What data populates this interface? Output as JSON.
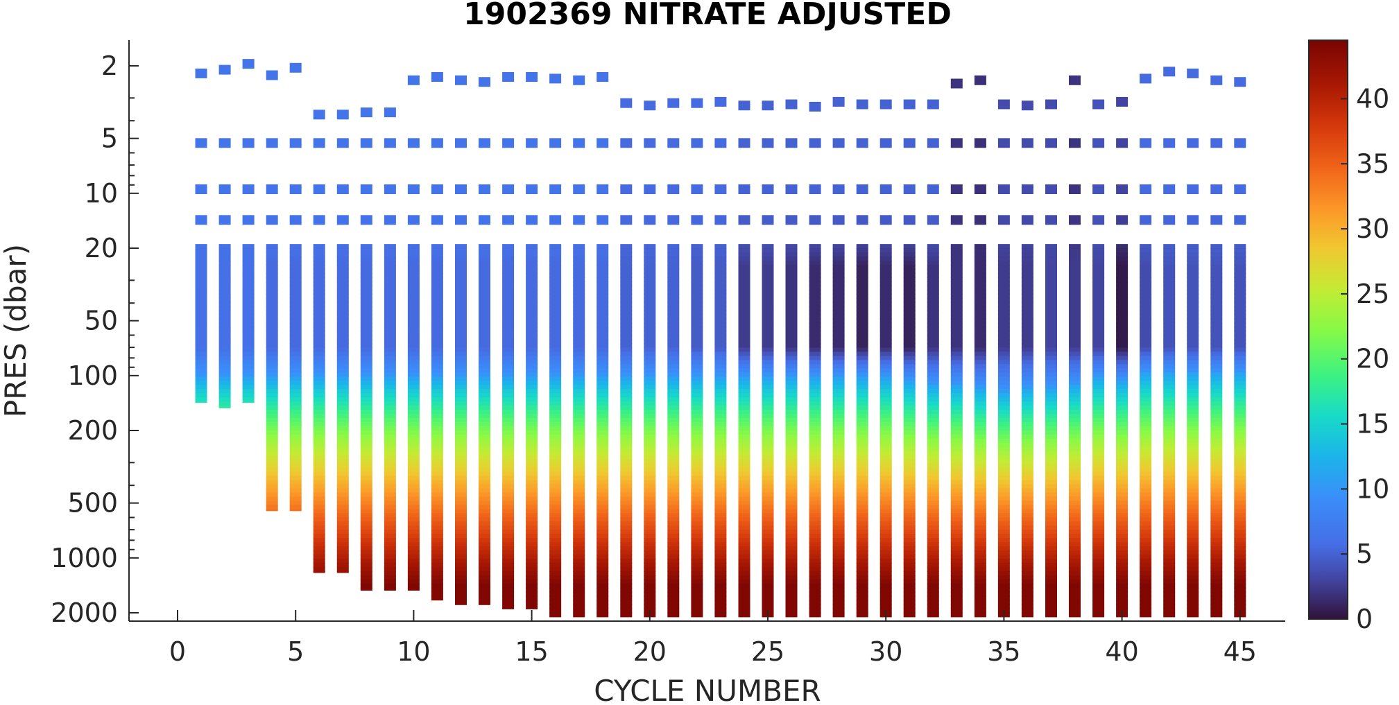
{
  "chart_data": {
    "type": "heatmap",
    "title": "1902369  NITRATE ADJUSTED",
    "xlabel": "CYCLE NUMBER",
    "ylabel": "PRES (dbar)",
    "xlim": [
      -2,
      47
    ],
    "ylim": [
      2000,
      1.5
    ],
    "y_scale": "log",
    "y_direction": "reversed",
    "x_ticks": [
      0,
      5,
      10,
      15,
      20,
      25,
      30,
      35,
      40,
      45
    ],
    "x_tick_labels": [
      "0",
      "5",
      "10",
      "15",
      "20",
      "25",
      "30",
      "35",
      "40",
      "45"
    ],
    "y_ticks": [
      2,
      5,
      10,
      20,
      50,
      100,
      200,
      500,
      1000,
      2000
    ],
    "y_tick_labels": [
      "2",
      "5",
      "10",
      "20",
      "50",
      "100",
      "200",
      "500",
      "1000",
      "2000"
    ],
    "colorbar": {
      "range": [
        0,
        44.5
      ],
      "ticks": [
        0,
        5,
        10,
        15,
        20,
        25,
        30,
        35,
        40
      ],
      "tick_labels": [
        "0",
        "5",
        "10",
        "15",
        "20",
        "25",
        "30",
        "35",
        "40"
      ],
      "colormap": "turbo"
    },
    "grid": false,
    "cycles": [
      1,
      2,
      3,
      4,
      5,
      6,
      7,
      8,
      9,
      10,
      11,
      12,
      13,
      14,
      15,
      16,
      17,
      18,
      19,
      20,
      21,
      22,
      23,
      24,
      25,
      26,
      27,
      28,
      29,
      30,
      31,
      32,
      33,
      34,
      35,
      36,
      37,
      38,
      39,
      40,
      41,
      42,
      43,
      44,
      45
    ],
    "max_pres_dbar": [
      140,
      150,
      140,
      550,
      550,
      1200,
      1200,
      1500,
      1500,
      1500,
      1700,
      1800,
      1800,
      1900,
      1900,
      2100,
      2100,
      2100,
      2100,
      2100,
      2100,
      2100,
      2100,
      2100,
      2100,
      2100,
      2100,
      2100,
      2100,
      2100,
      2100,
      2100,
      2100,
      2100,
      2100,
      2100,
      2100,
      2100,
      2100,
      2100,
      2100,
      2100,
      2100,
      2100,
      2100
    ],
    "surface_pres_dbar": [
      2.2,
      2.1,
      1.95,
      2.25,
      2.05,
      3.7,
      3.7,
      3.6,
      3.6,
      2.4,
      2.3,
      2.4,
      2.45,
      2.3,
      2.3,
      2.35,
      2.4,
      2.3,
      3.2,
      3.3,
      3.2,
      3.2,
      3.15,
      3.3,
      3.3,
      3.25,
      3.35,
      3.15,
      3.25,
      3.25,
      3.25,
      3.25,
      2.5,
      2.4,
      3.25,
      3.3,
      3.25,
      2.4,
      3.25,
      3.15,
      2.35,
      2.15,
      2.2,
      2.4,
      2.45
    ],
    "surface_nitrate": [
      6.5,
      6.5,
      6.5,
      6.5,
      6.5,
      6.5,
      6.5,
      6.5,
      6.5,
      6.5,
      6.5,
      6.5,
      6.5,
      6.5,
      6.5,
      6.5,
      6.5,
      6.5,
      5.5,
      5.5,
      5.5,
      5.5,
      5.5,
      5.0,
      5.0,
      5.0,
      5.0,
      5.0,
      5.0,
      5.0,
      5.0,
      5.0,
      2.0,
      1.8,
      3.5,
      3.5,
      3.5,
      2.0,
      4.0,
      3.0,
      5.5,
      5.5,
      5.5,
      5.5,
      5.5
    ],
    "depth_at_10_dbar_nitrate": [
      100,
      100,
      100,
      100,
      100,
      100,
      100,
      100,
      100,
      100,
      100,
      100,
      100,
      100,
      100,
      100,
      100,
      100,
      100,
      100,
      100,
      100,
      100,
      100,
      100,
      100,
      100,
      100,
      100,
      100,
      105,
      110,
      110,
      115,
      120,
      115,
      115,
      110,
      100,
      105,
      95,
      95,
      95,
      95,
      95
    ],
    "min_nitrate": [
      6.0,
      6.0,
      6.0,
      5.5,
      5.5,
      5.5,
      5.5,
      5.5,
      5.5,
      5.5,
      5.5,
      5.5,
      5.5,
      5.5,
      5.5,
      5.5,
      5.5,
      5.5,
      5.0,
      5.0,
      5.0,
      4.5,
      4.5,
      2.5,
      2.5,
      2.0,
      1.5,
      1.5,
      1.0,
      1.5,
      1.0,
      2.0,
      2.0,
      1.5,
      2.5,
      2.5,
      3.0,
      2.5,
      3.0,
      0.5,
      3.5,
      4.0,
      4.0,
      4.0,
      4.0
    ],
    "deep_nitrate": 44
  }
}
